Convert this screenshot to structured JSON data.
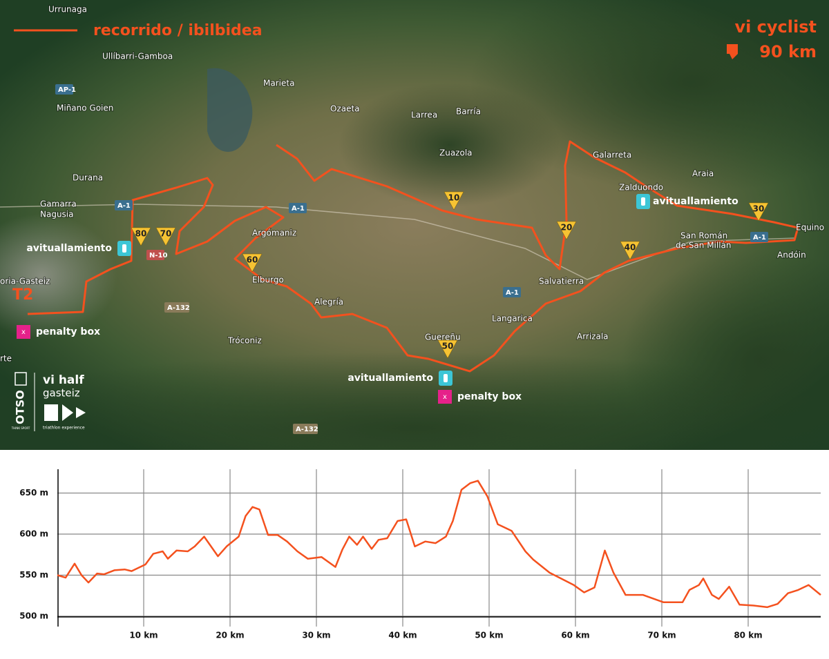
{
  "map": {
    "legend": "recorrido / ibilbidea",
    "brand": "vi cyclist",
    "distance": "90 km",
    "start": "T2",
    "places": [
      "Urrunaga",
      "Ullíbarri-Gamboa",
      "Miñano Goien",
      "Marieta",
      "Ozaeta",
      "Larrea",
      "Barría",
      "Zuazola",
      "Galarreta",
      "Araia",
      "Zalduondo",
      "Durana",
      "Gamarra",
      "Nagusia",
      "Argómaniz",
      "Elburgo",
      "Alegría",
      "Salvatierra",
      "Langarica",
      "Guereñu",
      "Arrizala",
      "Tróconiz",
      "San Román",
      "de San Millán",
      "Equino",
      "Andóin",
      "oria-Gasteiz",
      "rte"
    ],
    "roads": [
      "AP-1",
      "A-1",
      "A-1",
      "A-1",
      "A-1",
      "N-10",
      "A-132",
      "A-132"
    ],
    "markers": [
      "10",
      "20",
      "30",
      "40",
      "50",
      "60",
      "70",
      "80"
    ],
    "aid_stations": [
      "avituallamiento",
      "avituallamiento",
      "avituallamiento"
    ],
    "penalty_boxes": [
      {
        "icon": "x",
        "label": "penalty box"
      },
      {
        "icon": "x",
        "label": "penalty box"
      }
    ],
    "logo": {
      "mark": "OTSO",
      "tagline": "THINK SPORT",
      "name": "vi half",
      "city": "gasteiz",
      "subtitle": "triathlon experience"
    }
  },
  "chart_data": {
    "type": "line",
    "x": [
      0,
      0.96,
      2,
      2.8,
      3.6,
      4.6,
      5.4,
      6.6,
      7.8,
      8.6,
      10.2,
      11.1,
      12.2,
      12.8,
      13.8,
      15.1,
      15.9,
      17,
      18.6,
      19.6,
      21,
      21.8,
      22.6,
      23.4,
      24.4,
      25.5,
      26.6,
      27.8,
      29,
      30.6,
      32.2,
      33,
      33.8,
      34.7,
      35.4,
      36.4,
      37.2,
      38.2,
      39.4,
      40.4,
      41.4,
      42.6,
      43.8,
      45,
      45.8,
      46.8,
      47.8,
      48.7,
      49.8,
      51,
      52.6,
      54.2,
      55.1,
      57,
      59.8,
      61,
      62.2,
      63.4,
      64.4,
      65.8,
      67.8,
      70.2,
      72.4,
      73.2,
      74.3,
      74.8,
      75.8,
      76.6,
      77.8,
      79,
      80.6,
      82.2,
      83.4,
      84.6,
      85.8,
      87,
      88.4
    ],
    "series": [
      {
        "color": "#f4511e",
        "values": [
          550,
          547,
          564,
          550,
          541,
          552,
          551,
          556,
          557,
          555,
          563,
          576,
          579,
          570,
          580,
          579,
          585,
          597,
          573,
          585,
          597,
          622,
          633,
          630,
          599,
          599,
          591,
          579,
          570,
          572,
          560,
          581,
          597,
          587,
          597,
          582,
          593,
          595,
          616,
          618,
          585,
          591,
          589,
          597,
          616,
          654,
          662,
          665,
          646,
          612,
          604,
          579,
          569,
          553,
          538,
          529,
          535,
          580,
          553,
          526,
          526,
          517,
          517,
          532,
          538,
          546,
          526,
          521,
          536,
          514,
          513,
          511,
          515,
          528,
          532,
          538,
          526
        ]
      }
    ],
    "xlim": [
      0,
      88.4
    ],
    "ylim": [
      500,
      679
    ],
    "xticks": [
      {
        "value": 10,
        "label": "10 km"
      },
      {
        "value": 20,
        "label": "20 km"
      },
      {
        "value": 30,
        "label": "30 km"
      },
      {
        "value": 40,
        "label": "40 km"
      },
      {
        "value": 50,
        "label": "50 km"
      },
      {
        "value": 60,
        "label": "60 km"
      },
      {
        "value": 70,
        "label": "70 km"
      },
      {
        "value": 80,
        "label": "80 km"
      }
    ],
    "yticks": [
      {
        "value": 500,
        "label": "500 m"
      },
      {
        "value": 550,
        "label": "550 m"
      },
      {
        "value": 600,
        "label": "600 m"
      },
      {
        "value": 650,
        "label": "650 m"
      }
    ],
    "grid": true
  }
}
